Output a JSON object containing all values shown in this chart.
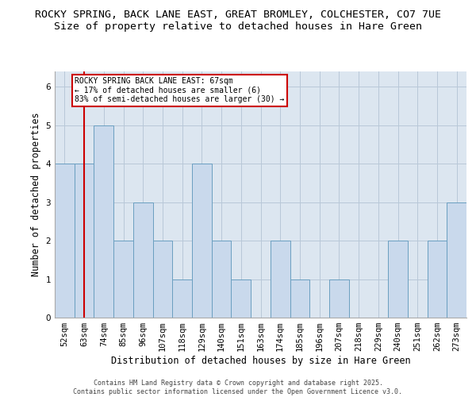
{
  "title_line1": "ROCKY SPRING, BACK LANE EAST, GREAT BROMLEY, COLCHESTER, CO7 7UE",
  "title_line2": "Size of property relative to detached houses in Hare Green",
  "xlabel": "Distribution of detached houses by size in Hare Green",
  "ylabel": "Number of detached properties",
  "categories": [
    "52sqm",
    "63sqm",
    "74sqm",
    "85sqm",
    "96sqm",
    "107sqm",
    "118sqm",
    "129sqm",
    "140sqm",
    "151sqm",
    "163sqm",
    "174sqm",
    "185sqm",
    "196sqm",
    "207sqm",
    "218sqm",
    "229sqm",
    "240sqm",
    "251sqm",
    "262sqm",
    "273sqm"
  ],
  "values": [
    4,
    4,
    5,
    2,
    3,
    2,
    1,
    4,
    2,
    1,
    0,
    2,
    1,
    0,
    1,
    0,
    0,
    2,
    0,
    2,
    3
  ],
  "bar_color": "#c9d9ec",
  "bar_edge_color": "#6a9fc0",
  "grid_color": "#b8c8d8",
  "background_color": "#dce6f0",
  "redline_x": 1.0,
  "annotation_text": "ROCKY SPRING BACK LANE EAST: 67sqm\n← 17% of detached houses are smaller (6)\n83% of semi-detached houses are larger (30) →",
  "annotation_box_color": "#ffffff",
  "annotation_border_color": "#cc0000",
  "footer_line1": "Contains HM Land Registry data © Crown copyright and database right 2025.",
  "footer_line2": "Contains public sector information licensed under the Open Government Licence v3.0.",
  "ylim": [
    0,
    6.4
  ],
  "yticks": [
    0,
    1,
    2,
    3,
    4,
    5,
    6
  ],
  "title_fontsize": 9.5,
  "subtitle_fontsize": 9.5,
  "xlabel_fontsize": 8.5,
  "ylabel_fontsize": 8.5,
  "tick_fontsize": 7.5,
  "annot_fontsize": 7.0,
  "footer_fontsize": 6.0
}
